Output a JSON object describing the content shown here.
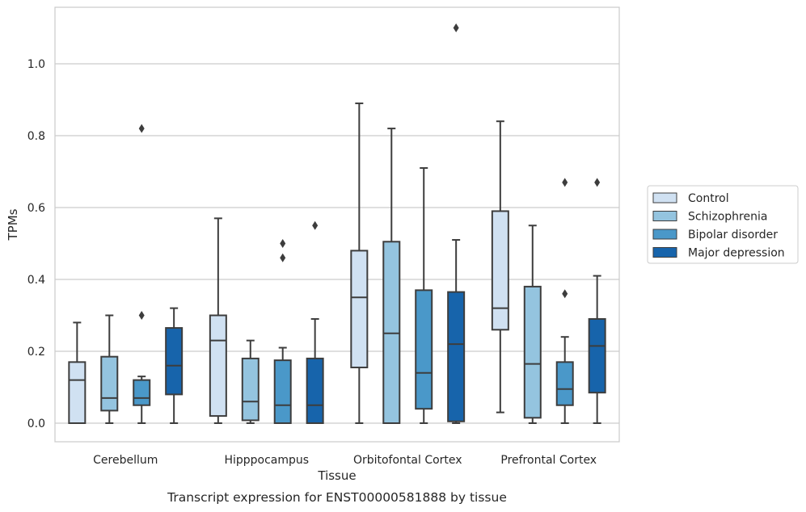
{
  "chart_data": {
    "type": "box",
    "title": "Transcript expression for ENST00000581888 by tissue",
    "xlabel": "Tissue",
    "ylabel": "TPMs",
    "ylim": [
      -0.053,
      1.16
    ],
    "yticks": [
      0.0,
      0.2,
      0.4,
      0.6,
      0.8,
      1.0
    ],
    "ytick_labels": [
      "0.0",
      "0.2",
      "0.4",
      "0.6",
      "0.8",
      "1.0"
    ],
    "grid": "horizontal",
    "legend_position": "right",
    "categories": [
      "Cerebellum",
      "Hipppocampus",
      "Orbitofontal Cortex",
      "Prefrontal Cortex"
    ],
    "series": [
      {
        "name": "Control",
        "color": "#d0e1f2",
        "boxes": [
          {
            "whisker_low": 0.0,
            "q1": 0.0,
            "median": 0.12,
            "q3": 0.17,
            "whisker_high": 0.28,
            "outliers": []
          },
          {
            "whisker_low": 0.0,
            "q1": 0.02,
            "median": 0.23,
            "q3": 0.3,
            "whisker_high": 0.57,
            "outliers": []
          },
          {
            "whisker_low": 0.0,
            "q1": 0.155,
            "median": 0.35,
            "q3": 0.48,
            "whisker_high": 0.89,
            "outliers": []
          },
          {
            "whisker_low": 0.03,
            "q1": 0.26,
            "median": 0.32,
            "q3": 0.59,
            "whisker_high": 0.84,
            "outliers": []
          }
        ]
      },
      {
        "name": "Schizophrenia",
        "color": "#94c4df",
        "boxes": [
          {
            "whisker_low": 0.0,
            "q1": 0.035,
            "median": 0.07,
            "q3": 0.185,
            "whisker_high": 0.3,
            "outliers": []
          },
          {
            "whisker_low": 0.0,
            "q1": 0.008,
            "median": 0.06,
            "q3": 0.18,
            "whisker_high": 0.23,
            "outliers": []
          },
          {
            "whisker_low": 0.0,
            "q1": 0.0,
            "median": 0.25,
            "q3": 0.505,
            "whisker_high": 0.82,
            "outliers": []
          },
          {
            "whisker_low": 0.0,
            "q1": 0.015,
            "median": 0.165,
            "q3": 0.38,
            "whisker_high": 0.55,
            "outliers": []
          }
        ]
      },
      {
        "name": "Bipolar disorder",
        "color": "#4a98c9",
        "boxes": [
          {
            "whisker_low": 0.0,
            "q1": 0.05,
            "median": 0.07,
            "q3": 0.12,
            "whisker_high": 0.13,
            "outliers": [
              0.3,
              0.82
            ]
          },
          {
            "whisker_low": 0.0,
            "q1": 0.0,
            "median": 0.05,
            "q3": 0.175,
            "whisker_high": 0.21,
            "outliers": [
              0.46,
              0.5
            ]
          },
          {
            "whisker_low": 0.0,
            "q1": 0.04,
            "median": 0.14,
            "q3": 0.37,
            "whisker_high": 0.71,
            "outliers": []
          },
          {
            "whisker_low": 0.0,
            "q1": 0.05,
            "median": 0.095,
            "q3": 0.17,
            "whisker_high": 0.24,
            "outliers": [
              0.36,
              0.67
            ]
          }
        ]
      },
      {
        "name": "Major depression",
        "color": "#1764ab",
        "boxes": [
          {
            "whisker_low": 0.0,
            "q1": 0.08,
            "median": 0.16,
            "q3": 0.265,
            "whisker_high": 0.32,
            "outliers": []
          },
          {
            "whisker_low": 0.0,
            "q1": 0.0,
            "median": 0.05,
            "q3": 0.18,
            "whisker_high": 0.29,
            "outliers": [
              0.55
            ]
          },
          {
            "whisker_low": 0.0,
            "q1": 0.005,
            "median": 0.22,
            "q3": 0.365,
            "whisker_high": 0.51,
            "outliers": [
              1.1
            ]
          },
          {
            "whisker_low": 0.0,
            "q1": 0.085,
            "median": 0.215,
            "q3": 0.29,
            "whisker_high": 0.41,
            "outliers": [
              0.67
            ]
          }
        ]
      }
    ]
  }
}
